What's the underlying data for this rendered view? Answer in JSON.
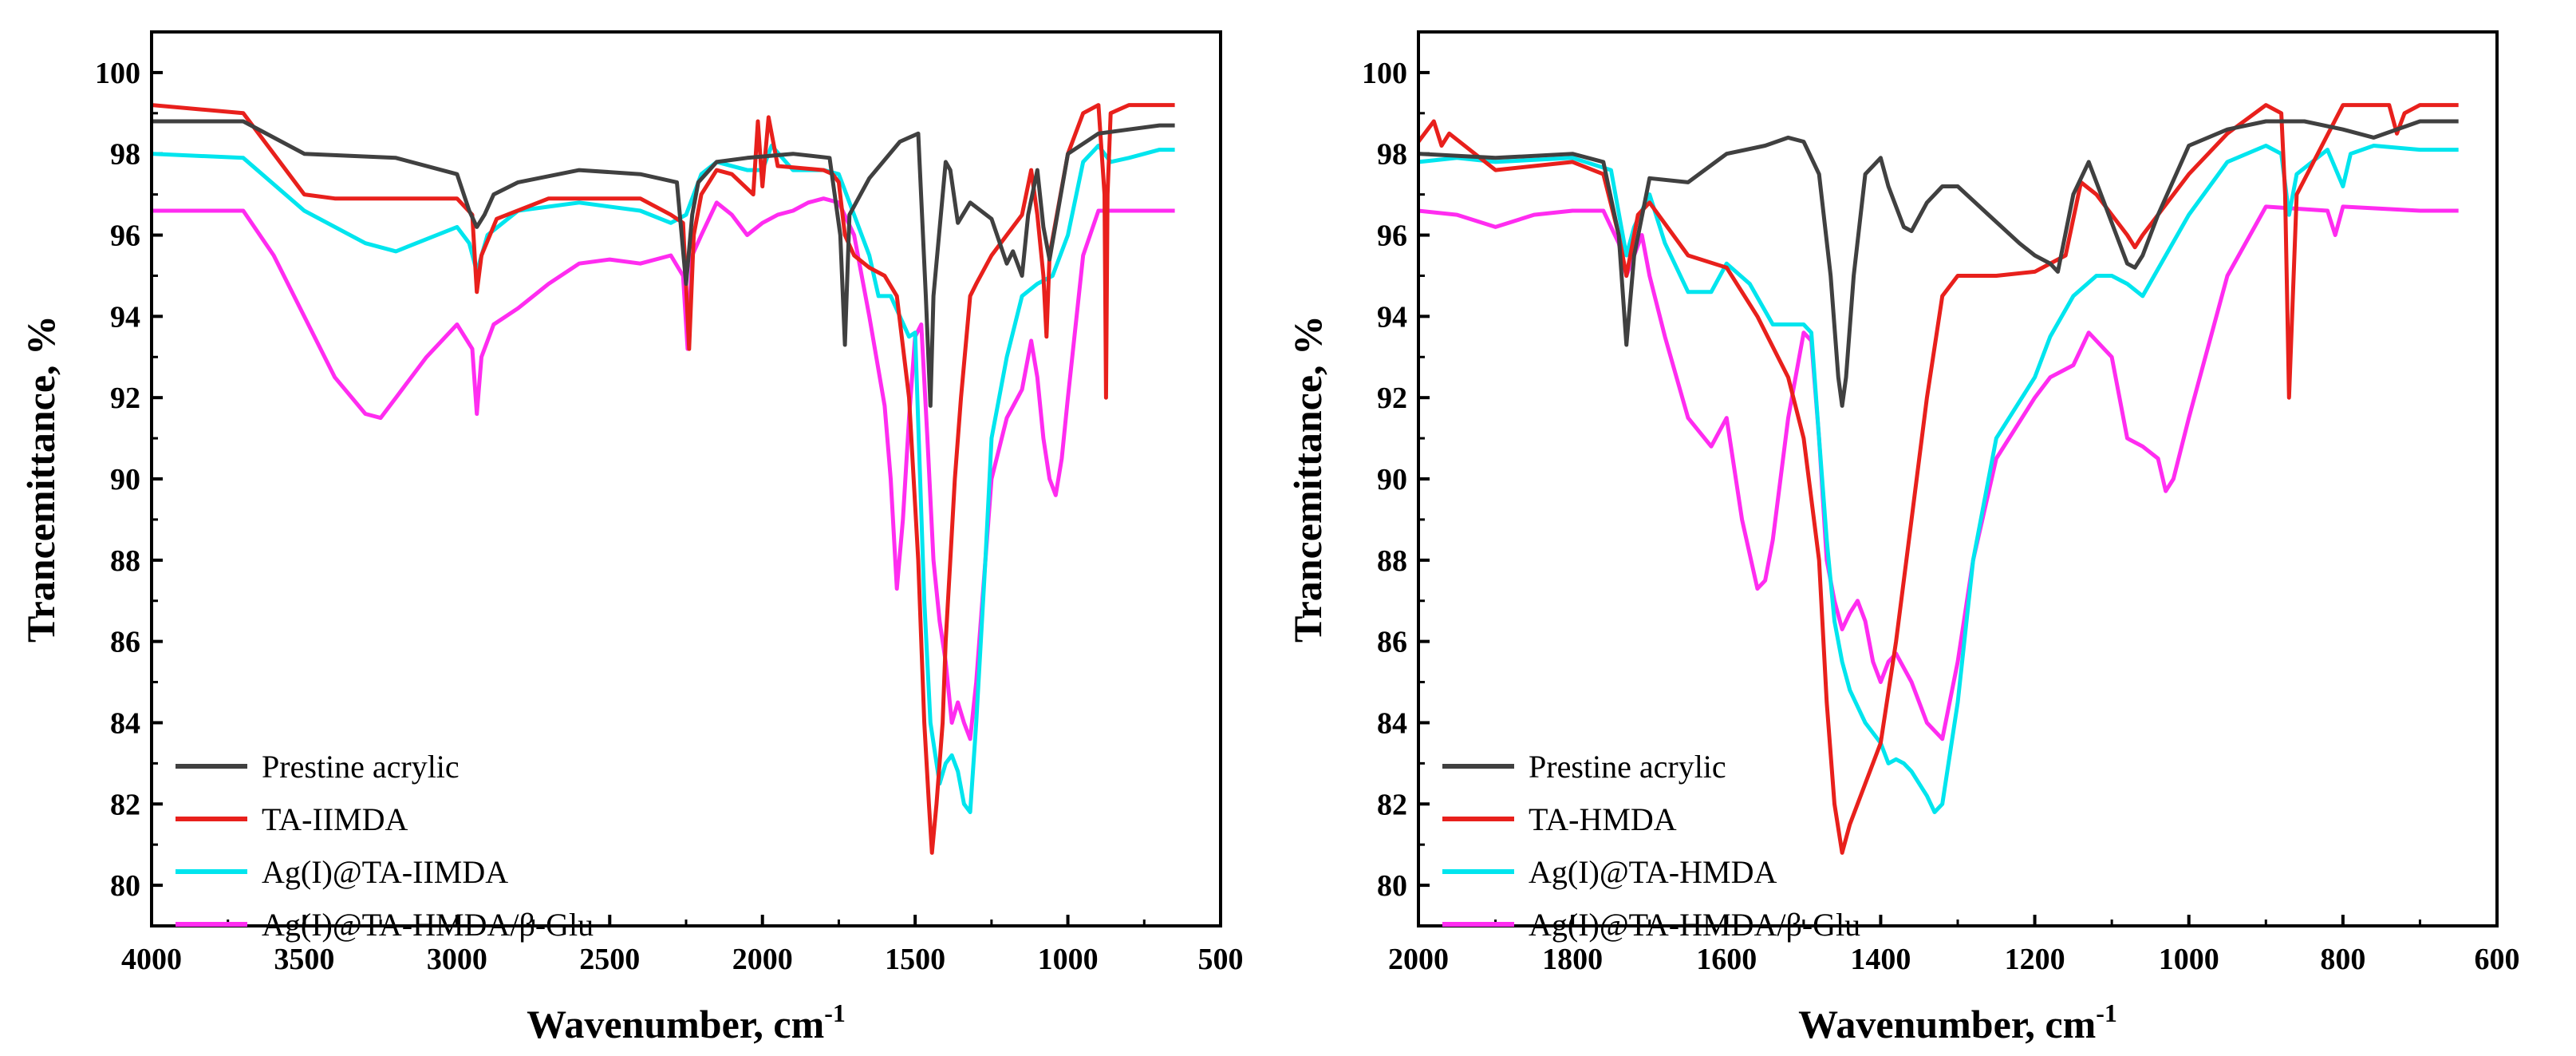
{
  "chart_data": [
    {
      "type": "line",
      "xlabel": "Wavenumber, cm",
      "xlabel_sup": "-1",
      "ylabel": "Trancemittance, %",
      "xlim": [
        4000,
        500
      ],
      "ylim": [
        79,
        101
      ],
      "xticks": [
        4000,
        3500,
        3000,
        2500,
        2000,
        1500,
        1000,
        500
      ],
      "yticks": [
        80,
        82,
        84,
        86,
        88,
        90,
        92,
        94,
        96,
        98,
        100
      ],
      "legend": "bottom-left",
      "series": [
        {
          "name": "Prestine acrylic",
          "color": "#404040",
          "x": [
            4000,
            3700,
            3500,
            3200,
            3000,
            2960,
            2935,
            2910,
            2880,
            2800,
            2600,
            2400,
            2280,
            2250,
            2230,
            2210,
            2150,
            2050,
            1900,
            1780,
            1745,
            1730,
            1715,
            1650,
            1550,
            1490,
            1465,
            1450,
            1440,
            1400,
            1385,
            1360,
            1320,
            1250,
            1200,
            1180,
            1150,
            1130,
            1100,
            1080,
            1060,
            1000,
            900,
            800,
            700,
            650
          ],
          "y": [
            98.8,
            98.8,
            98.0,
            97.9,
            97.5,
            96.6,
            96.2,
            96.5,
            97.0,
            97.3,
            97.6,
            97.5,
            97.3,
            94.8,
            96.5,
            97.3,
            97.8,
            97.9,
            98.0,
            97.9,
            96.0,
            93.3,
            96.5,
            97.4,
            98.3,
            98.5,
            94.5,
            91.8,
            94.5,
            97.8,
            97.6,
            96.3,
            96.8,
            96.4,
            95.3,
            95.6,
            95.0,
            96.5,
            97.6,
            96.2,
            95.4,
            98.0,
            98.5,
            98.6,
            98.7,
            98.7
          ]
        },
        {
          "name": "TA-IIMDA",
          "color": "#e8201c",
          "x": [
            4000,
            3700,
            3500,
            3400,
            3000,
            2950,
            2935,
            2920,
            2870,
            2700,
            2400,
            2300,
            2260,
            2240,
            2225,
            2200,
            2150,
            2100,
            2030,
            2015,
            2000,
            1980,
            1950,
            1800,
            1770,
            1750,
            1730,
            1700,
            1650,
            1600,
            1560,
            1520,
            1490,
            1470,
            1455,
            1445,
            1430,
            1410,
            1400,
            1385,
            1370,
            1350,
            1320,
            1300,
            1250,
            1200,
            1150,
            1120,
            1100,
            1080,
            1070,
            1060,
            1000,
            950,
            900,
            880,
            875,
            870,
            860,
            800,
            700,
            650
          ],
          "y": [
            99.2,
            99.0,
            97.0,
            96.9,
            96.9,
            96.5,
            94.6,
            95.5,
            96.4,
            96.9,
            96.9,
            96.5,
            96.3,
            93.2,
            96.0,
            97.0,
            97.6,
            97.5,
            97.0,
            98.8,
            97.2,
            98.9,
            97.7,
            97.6,
            97.5,
            97.3,
            96.0,
            95.5,
            95.2,
            95.0,
            94.5,
            92.0,
            88.0,
            84.0,
            82.0,
            80.8,
            82.0,
            84.0,
            86.0,
            88.0,
            90.0,
            92.0,
            94.5,
            94.8,
            95.5,
            96.0,
            96.5,
            97.6,
            96.5,
            95.0,
            93.5,
            95.5,
            98.0,
            99.0,
            99.2,
            97.0,
            92.0,
            97.0,
            99.0,
            99.2,
            99.2,
            99.2
          ]
        },
        {
          "name": "Ag(I)@TA-IIMDA",
          "color": "#00e5ee",
          "x": [
            4000,
            3700,
            3500,
            3300,
            3200,
            3000,
            2960,
            2935,
            2900,
            2800,
            2600,
            2400,
            2300,
            2250,
            2200,
            2150,
            2050,
            2000,
            1970,
            1900,
            1800,
            1750,
            1700,
            1650,
            1620,
            1580,
            1550,
            1520,
            1500,
            1470,
            1450,
            1420,
            1400,
            1380,
            1360,
            1340,
            1320,
            1300,
            1270,
            1250,
            1200,
            1150,
            1100,
            1050,
            1000,
            950,
            900,
            880,
            860,
            800,
            700,
            650
          ],
          "y": [
            98.0,
            97.9,
            96.6,
            95.8,
            95.6,
            96.2,
            95.8,
            95.1,
            96.0,
            96.6,
            96.8,
            96.6,
            96.3,
            96.5,
            97.5,
            97.8,
            97.6,
            97.6,
            98.2,
            97.6,
            97.6,
            97.5,
            96.5,
            95.5,
            94.5,
            94.5,
            94.0,
            93.5,
            93.6,
            87.0,
            84.0,
            82.5,
            83.0,
            83.2,
            82.8,
            82.0,
            81.8,
            84.0,
            88.0,
            91.0,
            93.0,
            94.5,
            94.8,
            95.0,
            96.0,
            97.8,
            98.2,
            98.0,
            97.8,
            97.9,
            98.1,
            98.1
          ]
        },
        {
          "name": "Ag(I)@TA-HMDA/β-Glu",
          "color": "#ff2cf0",
          "x": [
            4000,
            3700,
            3600,
            3500,
            3400,
            3300,
            3250,
            3200,
            3100,
            3000,
            2950,
            2935,
            2920,
            2880,
            2800,
            2700,
            2600,
            2500,
            2400,
            2300,
            2260,
            2245,
            2230,
            2200,
            2150,
            2100,
            2050,
            2000,
            1950,
            1900,
            1850,
            1800,
            1750,
            1700,
            1650,
            1600,
            1580,
            1560,
            1540,
            1520,
            1500,
            1480,
            1460,
            1440,
            1420,
            1410,
            1400,
            1380,
            1360,
            1340,
            1320,
            1300,
            1270,
            1250,
            1200,
            1150,
            1120,
            1100,
            1080,
            1060,
            1040,
            1020,
            1000,
            950,
            900,
            800,
            700,
            650
          ],
          "y": [
            96.6,
            96.6,
            95.5,
            94.0,
            92.5,
            91.6,
            91.5,
            92.0,
            93.0,
            93.8,
            93.2,
            91.6,
            93.0,
            93.8,
            94.2,
            94.8,
            95.3,
            95.4,
            95.3,
            95.5,
            95.0,
            93.2,
            95.5,
            96.0,
            96.8,
            96.5,
            96.0,
            96.3,
            96.5,
            96.6,
            96.8,
            96.9,
            96.8,
            96.0,
            94.0,
            91.8,
            90.0,
            87.3,
            89.0,
            91.5,
            93.5,
            93.8,
            91.0,
            88.0,
            86.5,
            86.0,
            85.5,
            84.0,
            84.5,
            84.0,
            83.6,
            85.0,
            88.0,
            90.0,
            91.5,
            92.2,
            93.4,
            92.5,
            91.0,
            90.0,
            89.6,
            90.5,
            92.0,
            95.5,
            96.6,
            96.6,
            96.6,
            96.6
          ]
        }
      ]
    },
    {
      "type": "line",
      "xlabel": "Wavenumber, cm",
      "xlabel_sup": "-1",
      "ylabel": "Trancemittance, %",
      "xlim": [
        2000,
        600
      ],
      "ylim": [
        79,
        101
      ],
      "xticks": [
        2000,
        1800,
        1600,
        1400,
        1200,
        1000,
        800,
        600
      ],
      "yticks": [
        80,
        82,
        84,
        86,
        88,
        90,
        92,
        94,
        96,
        98,
        100
      ],
      "legend": "bottom-left",
      "series": [
        {
          "name": "Prestine acrylic",
          "color": "#404040",
          "x": [
            2000,
            1900,
            1800,
            1760,
            1740,
            1730,
            1720,
            1700,
            1650,
            1600,
            1550,
            1520,
            1500,
            1480,
            1465,
            1455,
            1450,
            1445,
            1435,
            1420,
            1400,
            1390,
            1370,
            1360,
            1340,
            1320,
            1300,
            1260,
            1220,
            1200,
            1180,
            1170,
            1150,
            1130,
            1110,
            1090,
            1080,
            1070,
            1060,
            1040,
            1000,
            950,
            900,
            850,
            800,
            760,
            700,
            650
          ],
          "y": [
            98.0,
            97.9,
            98.0,
            97.8,
            96.0,
            93.3,
            95.5,
            97.4,
            97.3,
            98.0,
            98.2,
            98.4,
            98.3,
            97.5,
            95.0,
            92.5,
            91.8,
            92.5,
            95.0,
            97.5,
            97.9,
            97.2,
            96.2,
            96.1,
            96.8,
            97.2,
            97.2,
            96.5,
            95.8,
            95.5,
            95.3,
            95.1,
            97.0,
            97.8,
            96.8,
            95.8,
            95.3,
            95.2,
            95.5,
            96.5,
            98.2,
            98.6,
            98.8,
            98.8,
            98.6,
            98.4,
            98.8,
            98.8
          ]
        },
        {
          "name": "TA-HMDA",
          "color": "#e8201c",
          "x": [
            2000,
            1980,
            1970,
            1960,
            1900,
            1800,
            1760,
            1740,
            1730,
            1715,
            1700,
            1650,
            1600,
            1560,
            1520,
            1500,
            1480,
            1470,
            1460,
            1450,
            1440,
            1420,
            1400,
            1380,
            1360,
            1340,
            1320,
            1300,
            1250,
            1200,
            1160,
            1140,
            1120,
            1100,
            1080,
            1070,
            1060,
            1000,
            950,
            900,
            880,
            875,
            870,
            860,
            800,
            740,
            730,
            720,
            700,
            650
          ],
          "y": [
            98.3,
            98.8,
            98.2,
            98.5,
            97.6,
            97.8,
            97.5,
            96.0,
            95.0,
            96.5,
            96.8,
            95.5,
            95.2,
            94.0,
            92.5,
            91.0,
            88.0,
            84.5,
            82.0,
            80.8,
            81.5,
            82.5,
            83.5,
            86.0,
            89.0,
            92.0,
            94.5,
            95.0,
            95.0,
            95.1,
            95.5,
            97.3,
            97.0,
            96.5,
            96.0,
            95.7,
            96.0,
            97.5,
            98.5,
            99.2,
            99.0,
            97.0,
            92.0,
            97.0,
            99.2,
            99.2,
            98.5,
            99.0,
            99.2,
            99.2
          ]
        },
        {
          "name": "Ag(I)@TA-HMDA",
          "color": "#00e5ee",
          "x": [
            2000,
            1950,
            1900,
            1800,
            1750,
            1730,
            1720,
            1700,
            1680,
            1650,
            1620,
            1600,
            1570,
            1540,
            1520,
            1500,
            1490,
            1480,
            1470,
            1460,
            1450,
            1440,
            1420,
            1400,
            1390,
            1380,
            1370,
            1360,
            1340,
            1330,
            1320,
            1300,
            1280,
            1250,
            1200,
            1180,
            1150,
            1120,
            1100,
            1080,
            1060,
            1000,
            950,
            900,
            880,
            870,
            860,
            820,
            800,
            790,
            760,
            700,
            650
          ],
          "y": [
            97.8,
            97.9,
            97.8,
            97.9,
            97.6,
            95.5,
            96.2,
            97.0,
            95.8,
            94.6,
            94.6,
            95.3,
            94.8,
            93.8,
            93.8,
            93.8,
            93.6,
            91.0,
            88.5,
            86.5,
            85.5,
            84.8,
            84.0,
            83.5,
            83.0,
            83.1,
            83.0,
            82.8,
            82.2,
            81.8,
            82.0,
            84.5,
            88.0,
            91.0,
            92.5,
            93.5,
            94.5,
            95.0,
            95.0,
            94.8,
            94.5,
            96.5,
            97.8,
            98.2,
            98.0,
            96.5,
            97.5,
            98.1,
            97.2,
            98.0,
            98.2,
            98.1,
            98.1
          ]
        },
        {
          "name": "Ag(I)@TA-HMDA/β-Glu",
          "color": "#ff2cf0",
          "x": [
            2000,
            1950,
            1900,
            1850,
            1800,
            1760,
            1740,
            1730,
            1720,
            1710,
            1700,
            1680,
            1650,
            1620,
            1600,
            1580,
            1560,
            1550,
            1540,
            1520,
            1500,
            1490,
            1480,
            1470,
            1460,
            1450,
            1440,
            1430,
            1420,
            1410,
            1400,
            1390,
            1380,
            1360,
            1340,
            1320,
            1300,
            1280,
            1250,
            1200,
            1180,
            1150,
            1130,
            1100,
            1080,
            1060,
            1040,
            1030,
            1020,
            1000,
            950,
            900,
            820,
            810,
            800,
            700,
            650
          ],
          "y": [
            96.6,
            96.5,
            96.2,
            96.5,
            96.6,
            96.6,
            95.8,
            95.0,
            95.5,
            96.0,
            95.0,
            93.5,
            91.5,
            90.8,
            91.5,
            89.0,
            87.3,
            87.5,
            88.5,
            91.5,
            93.6,
            93.4,
            91.0,
            88.0,
            87.0,
            86.3,
            86.7,
            87.0,
            86.5,
            85.5,
            85.0,
            85.5,
            85.7,
            85.0,
            84.0,
            83.6,
            85.5,
            88.0,
            90.5,
            92.0,
            92.5,
            92.8,
            93.6,
            93.0,
            91.0,
            90.8,
            90.5,
            89.7,
            90.0,
            91.5,
            95.0,
            96.7,
            96.6,
            96.0,
            96.7,
            96.6,
            96.6
          ]
        }
      ]
    }
  ]
}
